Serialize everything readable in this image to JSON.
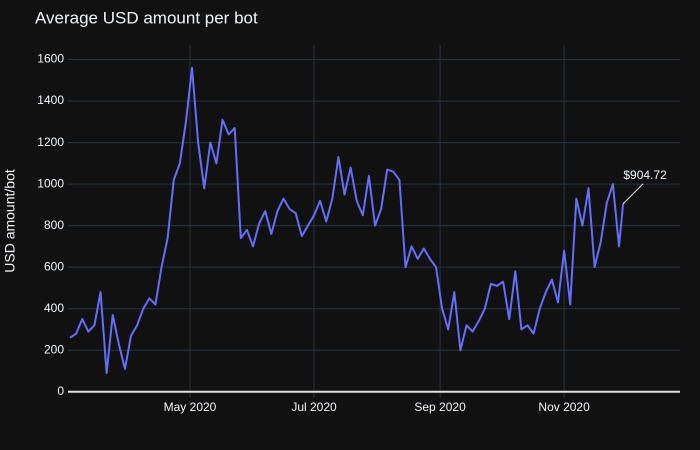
{
  "chart_data": {
    "type": "line",
    "title": "Average USD amount per bot",
    "y_label": "USD amount/bot",
    "x": [
      63,
      66,
      69,
      72,
      75,
      78,
      81,
      84,
      87,
      90,
      93,
      96,
      99,
      102,
      105,
      108,
      111,
      114,
      117,
      120,
      123,
      126,
      129,
      132,
      135,
      138,
      141,
      144,
      147,
      150,
      153,
      156,
      159,
      162,
      165,
      168,
      171,
      174,
      177,
      180,
      183,
      186,
      189,
      192,
      195,
      198,
      201,
      204,
      207,
      210,
      213,
      216,
      219,
      222,
      225,
      228,
      231,
      234,
      237,
      240,
      243,
      246,
      249,
      252,
      255,
      258,
      261,
      264,
      267,
      270,
      273,
      276,
      279,
      282,
      285,
      288,
      291,
      294,
      297,
      300,
      303,
      306,
      309,
      312,
      315,
      318,
      321,
      324,
      327,
      330,
      333,
      335
    ],
    "series": [
      {
        "name": "USD amount/bot",
        "color": "#636efa",
        "values": [
          260,
          280,
          350,
          290,
          320,
          480,
          90,
          370,
          230,
          110,
          270,
          320,
          400,
          450,
          420,
          600,
          740,
          1020,
          1100,
          1300,
          1560,
          1200,
          980,
          1200,
          1100,
          1310,
          1240,
          1270,
          740,
          780,
          700,
          810,
          870,
          760,
          870,
          930,
          880,
          860,
          750,
          800,
          850,
          920,
          820,
          930,
          1130,
          950,
          1080,
          920,
          850,
          1040,
          800,
          880,
          1070,
          1060,
          1020,
          600,
          700,
          640,
          690,
          640,
          600,
          400,
          300,
          480,
          200,
          320,
          290,
          340,
          400,
          520,
          510,
          530,
          350,
          580,
          300,
          320,
          280,
          400,
          480,
          540,
          430,
          680,
          420,
          930,
          800,
          980,
          600,
          720,
          910,
          1000,
          700,
          904.72
        ]
      }
    ],
    "annotation": "$904.72",
    "xlim": [
      62,
      363
    ],
    "xticks": [
      {
        "value": 122,
        "label": "May 2020"
      },
      {
        "value": 183,
        "label": "Jul 2020"
      },
      {
        "value": 245,
        "label": "Sep 2020"
      },
      {
        "value": 306,
        "label": "Nov 2020"
      }
    ],
    "ylim": [
      -30,
      1670
    ],
    "yticks": [
      0,
      200,
      400,
      600,
      800,
      1000,
      1200,
      1400,
      1600
    ],
    "grid": true
  }
}
